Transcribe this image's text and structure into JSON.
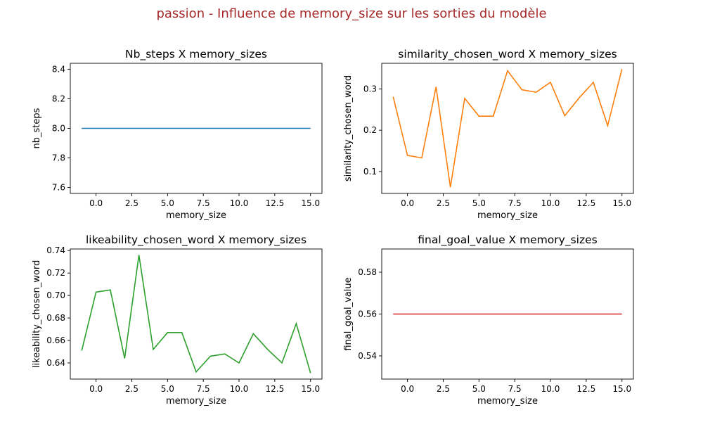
{
  "suptitle": "passion - Influence de memory_size sur les sorties du modèle",
  "colors": {
    "title": "#a52a2a",
    "c0": "#1f77b4",
    "c1": "#ff7f0e",
    "c2": "#2ca02c",
    "c3": "#d62728"
  },
  "chart_data": [
    {
      "type": "line",
      "title": "Nb_steps X memory_sizes",
      "xlabel": "memory_size",
      "ylabel": "nb_steps",
      "color": "#1f77b4",
      "xlim": [
        -1.8,
        15.8
      ],
      "ylim": [
        7.56,
        8.44
      ],
      "xticks": [
        0.0,
        2.5,
        5.0,
        7.5,
        10.0,
        12.5,
        15.0
      ],
      "xtick_labels": [
        "0.0",
        "2.5",
        "5.0",
        "7.5",
        "10.0",
        "12.5",
        "15.0"
      ],
      "yticks": [
        7.6,
        7.8,
        8.0,
        8.2,
        8.4
      ],
      "ytick_labels": [
        "7.6",
        "7.8",
        "8.0",
        "8.2",
        "8.4"
      ],
      "x": [
        -1,
        0,
        1,
        2,
        3,
        4,
        5,
        6,
        7,
        8,
        9,
        10,
        11,
        12,
        13,
        14,
        15
      ],
      "y": [
        8,
        8,
        8,
        8,
        8,
        8,
        8,
        8,
        8,
        8,
        8,
        8,
        8,
        8,
        8,
        8,
        8
      ]
    },
    {
      "type": "line",
      "title": "similarity_chosen_word X memory_sizes",
      "xlabel": "memory_size",
      "ylabel": "similarity_chosen_word",
      "color": "#ff7f0e",
      "xlim": [
        -1.8,
        15.8
      ],
      "ylim": [
        0.047,
        0.362
      ],
      "xticks": [
        0.0,
        2.5,
        5.0,
        7.5,
        10.0,
        12.5,
        15.0
      ],
      "xtick_labels": [
        "0.0",
        "2.5",
        "5.0",
        "7.5",
        "10.0",
        "12.5",
        "15.0"
      ],
      "yticks": [
        0.1,
        0.2,
        0.3
      ],
      "ytick_labels": [
        "0.1",
        "0.2",
        "0.3"
      ],
      "x": [
        -1,
        0,
        1,
        2,
        3,
        4,
        5,
        6,
        7,
        8,
        9,
        10,
        11,
        12,
        13,
        14,
        15
      ],
      "y": [
        0.281,
        0.139,
        0.133,
        0.305,
        0.062,
        0.277,
        0.234,
        0.234,
        0.344,
        0.298,
        0.292,
        0.316,
        0.235,
        0.278,
        0.316,
        0.211,
        0.348
      ]
    },
    {
      "type": "line",
      "title": "likeability_chosen_word X memory_sizes",
      "xlabel": "memory_size",
      "ylabel": "likeability_chosen_word",
      "color": "#2ca02c",
      "xlim": [
        -1.8,
        15.8
      ],
      "ylim": [
        0.6256,
        0.7414
      ],
      "xticks": [
        0.0,
        2.5,
        5.0,
        7.5,
        10.0,
        12.5,
        15.0
      ],
      "xtick_labels": [
        "0.0",
        "2.5",
        "5.0",
        "7.5",
        "10.0",
        "12.5",
        "15.0"
      ],
      "yticks": [
        0.64,
        0.66,
        0.68,
        0.7,
        0.72,
        0.74
      ],
      "ytick_labels": [
        "0.64",
        "0.66",
        "0.68",
        "0.70",
        "0.72",
        "0.74"
      ],
      "x": [
        -1,
        0,
        1,
        2,
        3,
        4,
        5,
        6,
        7,
        8,
        9,
        10,
        11,
        12,
        13,
        14,
        15
      ],
      "y": [
        0.651,
        0.703,
        0.705,
        0.644,
        0.736,
        0.652,
        0.667,
        0.667,
        0.632,
        0.646,
        0.648,
        0.64,
        0.666,
        0.652,
        0.64,
        0.675,
        0.631
      ]
    },
    {
      "type": "line",
      "title": "final_goal_value X memory_sizes",
      "xlabel": "memory_size",
      "ylabel": "final_goal_value",
      "color": "#d62728",
      "xlim": [
        -1.8,
        15.8
      ],
      "ylim": [
        0.5289,
        0.5911
      ],
      "xticks": [
        0.0,
        2.5,
        5.0,
        7.5,
        10.0,
        12.5,
        15.0
      ],
      "xtick_labels": [
        "0.0",
        "2.5",
        "5.0",
        "7.5",
        "10.0",
        "12.5",
        "15.0"
      ],
      "yticks": [
        0.54,
        0.56,
        0.58
      ],
      "ytick_labels": [
        "0.54",
        "0.56",
        "0.58"
      ],
      "x": [
        -1,
        0,
        1,
        2,
        3,
        4,
        5,
        6,
        7,
        8,
        9,
        10,
        11,
        12,
        13,
        14,
        15
      ],
      "y": [
        0.56,
        0.56,
        0.56,
        0.56,
        0.56,
        0.56,
        0.56,
        0.56,
        0.56,
        0.56,
        0.56,
        0.56,
        0.56,
        0.56,
        0.56,
        0.56,
        0.56
      ]
    }
  ]
}
